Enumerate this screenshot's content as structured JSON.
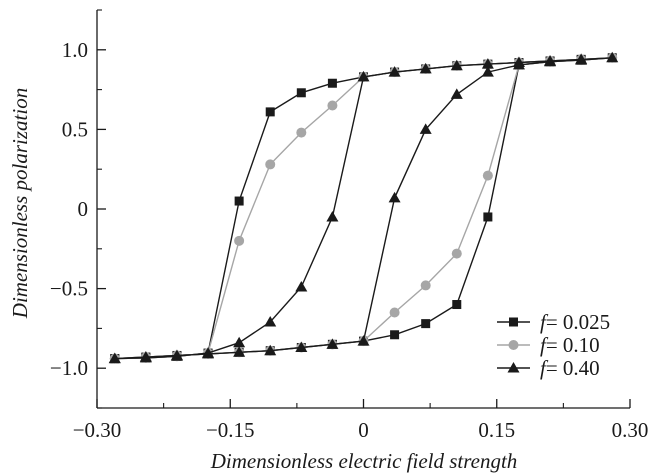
{
  "chart_data": {
    "type": "line",
    "title": "",
    "xlabel": "Dimensionless electric field strength",
    "ylabel": "Dimensionless polarization",
    "xlim": [
      -0.3,
      0.3
    ],
    "ylim": [
      -1.25,
      1.25
    ],
    "xticks": [
      -0.3,
      -0.15,
      0,
      0.15,
      0.3
    ],
    "xtick_labels": [
      "−0.30",
      "−0.15",
      "0",
      "0.15",
      "0.30"
    ],
    "yticks": [
      1.0,
      0.5,
      0,
      -0.5,
      -1.0
    ],
    "ytick_labels": [
      "1.0",
      "0.5",
      "0",
      "−0.5",
      "−1.0"
    ],
    "grid": false,
    "legend_position": "bottom-right",
    "series": [
      {
        "name_var": "f",
        "name_value": "= 0.025",
        "marker": "square",
        "color": "#1a1a1a",
        "x": [
          -0.28,
          -0.245,
          -0.21,
          -0.175,
          -0.14,
          -0.105,
          -0.07,
          -0.035,
          0,
          0.035,
          0.07,
          0.105,
          0.14,
          0.175,
          0.21,
          0.245,
          0.28,
          0.245,
          0.21,
          0.175,
          0.14,
          0.105,
          0.07,
          0.035,
          0,
          -0.035,
          -0.07,
          -0.105,
          -0.14,
          -0.175,
          -0.21,
          -0.245,
          -0.28
        ],
        "y": [
          -0.94,
          -0.935,
          -0.925,
          -0.905,
          0.05,
          0.61,
          0.73,
          0.79,
          0.83,
          0.86,
          0.88,
          0.9,
          0.91,
          0.92,
          0.93,
          0.94,
          0.95,
          0.935,
          0.925,
          0.905,
          -0.05,
          -0.6,
          -0.72,
          -0.79,
          -0.83,
          -0.85,
          -0.87,
          -0.89,
          -0.9,
          -0.91,
          -0.92,
          -0.93,
          -0.94
        ]
      },
      {
        "name_var": "f",
        "name_value": "= 0.10",
        "marker": "circle",
        "color": "#a6a6a6",
        "x": [
          -0.28,
          -0.245,
          -0.21,
          -0.175,
          -0.14,
          -0.105,
          -0.07,
          -0.035,
          0,
          0.035,
          0.07,
          0.105,
          0.14,
          0.175,
          0.21,
          0.245,
          0.28,
          0.245,
          0.21,
          0.175,
          0.14,
          0.105,
          0.07,
          0.035,
          0,
          -0.035,
          -0.07,
          -0.105,
          -0.14,
          -0.175,
          -0.21,
          -0.245,
          -0.28
        ],
        "y": [
          -0.94,
          -0.935,
          -0.925,
          -0.905,
          -0.2,
          0.28,
          0.48,
          0.65,
          0.83,
          0.86,
          0.88,
          0.9,
          0.91,
          0.92,
          0.93,
          0.94,
          0.95,
          0.935,
          0.925,
          0.905,
          0.21,
          -0.28,
          -0.48,
          -0.65,
          -0.83,
          -0.85,
          -0.87,
          -0.89,
          -0.9,
          -0.91,
          -0.92,
          -0.93,
          -0.94
        ]
      },
      {
        "name_var": "f",
        "name_value": "= 0.40",
        "marker": "triangle",
        "color": "#1a1a1a",
        "x": [
          -0.28,
          -0.245,
          -0.21,
          -0.175,
          -0.14,
          -0.105,
          -0.07,
          -0.035,
          0,
          0.035,
          0.07,
          0.105,
          0.14,
          0.175,
          0.21,
          0.245,
          0.28,
          0.245,
          0.21,
          0.175,
          0.14,
          0.105,
          0.07,
          0.035,
          0,
          -0.035,
          -0.07,
          -0.105,
          -0.14,
          -0.175,
          -0.21,
          -0.245,
          -0.28
        ],
        "y": [
          -0.94,
          -0.935,
          -0.925,
          -0.905,
          -0.84,
          -0.71,
          -0.49,
          -0.05,
          0.83,
          0.86,
          0.88,
          0.9,
          0.91,
          0.92,
          0.93,
          0.94,
          0.95,
          0.935,
          0.925,
          0.905,
          0.86,
          0.72,
          0.5,
          0.07,
          -0.83,
          -0.85,
          -0.87,
          -0.89,
          -0.9,
          -0.91,
          -0.92,
          -0.93,
          -0.94
        ]
      }
    ]
  }
}
